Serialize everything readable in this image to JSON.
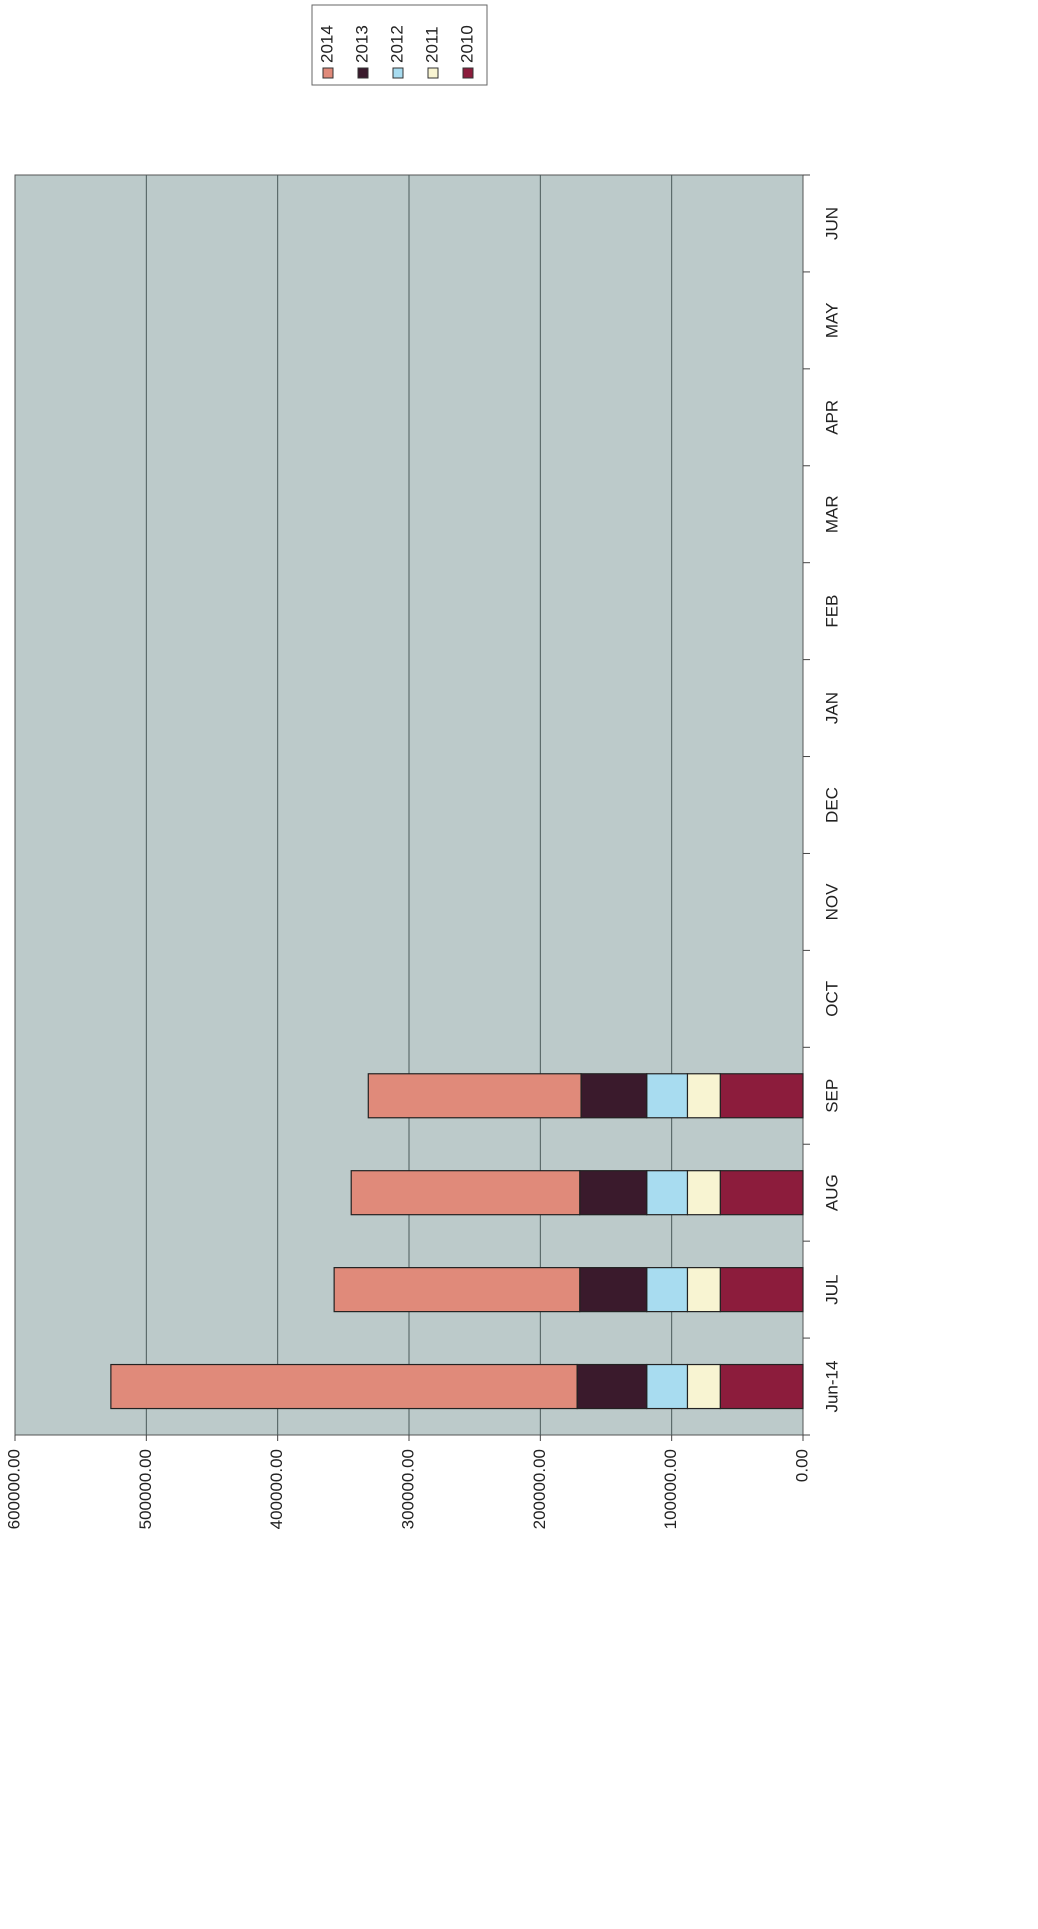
{
  "chart_data": {
    "type": "stacked-bar",
    "categories": [
      "Jun-14",
      "JUL",
      "AUG",
      "SEP",
      "OCT",
      "NOV",
      "DEC",
      "JAN",
      "FEB",
      "MAR",
      "APR",
      "MAY",
      "JUN"
    ],
    "series": [
      {
        "name": "2010",
        "color": "#8c1c3c",
        "values": [
          63000,
          63000,
          63000,
          63000,
          null,
          null,
          null,
          null,
          null,
          null,
          null,
          null,
          null
        ]
      },
      {
        "name": "2011",
        "color": "#f8f4d2",
        "values": [
          25000,
          25000,
          25000,
          25000,
          null,
          null,
          null,
          null,
          null,
          null,
          null,
          null,
          null
        ]
      },
      {
        "name": "2012",
        "color": "#a8dcf0",
        "values": [
          31000,
          31000,
          31000,
          31000,
          null,
          null,
          null,
          null,
          null,
          null,
          null,
          null,
          null
        ]
      },
      {
        "name": "2013",
        "color": "#3a1a2c",
        "values": [
          53000,
          51000,
          51000,
          50000,
          null,
          null,
          null,
          null,
          null,
          null,
          null,
          null,
          null
        ]
      },
      {
        "name": "2014",
        "color": "#e08a7a",
        "values": [
          355000,
          187000,
          174000,
          162000,
          null,
          null,
          null,
          null,
          null,
          null,
          null,
          null,
          null
        ]
      }
    ],
    "ylim": [
      0,
      600000
    ],
    "yticks": [
      {
        "value": 0,
        "label": "0.00"
      },
      {
        "value": 100000,
        "label": "100000.00"
      },
      {
        "value": 200000,
        "label": "200000.00"
      },
      {
        "value": 300000,
        "label": "300000.00"
      },
      {
        "value": 400000,
        "label": "400000.00"
      },
      {
        "value": 500000,
        "label": "500000.00"
      },
      {
        "value": 600000,
        "label": "600000.00"
      }
    ],
    "grid": true
  }
}
